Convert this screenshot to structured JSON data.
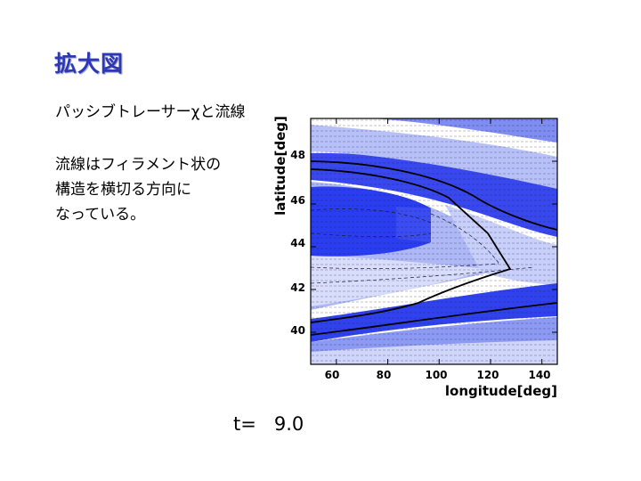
{
  "slide": {
    "title": "拡大図",
    "line1": "パッシブトレーサーχと流線",
    "paragraph": [
      "流線はフィラメント状の",
      "構造を横切る方向に",
      "なっている。"
    ],
    "time_label": "t=   9.0"
  },
  "figure": {
    "xlabel": "longitude[deg]",
    "ylabel": "latitude[deg]",
    "x_ticks": [
      "60",
      "80",
      "100",
      "120",
      "140"
    ],
    "y_ticks": [
      "40",
      "42",
      "44",
      "46",
      "48"
    ],
    "xlim": [
      50,
      146
    ],
    "ylim": [
      38.5,
      50.0
    ],
    "colors": {
      "deep_blue": "#2a3df0",
      "mid_blue": "#4656ee",
      "light_blue": "#8f9cf4",
      "pale_blue": "#c9d0fa",
      "white": "#ffffff"
    }
  }
}
